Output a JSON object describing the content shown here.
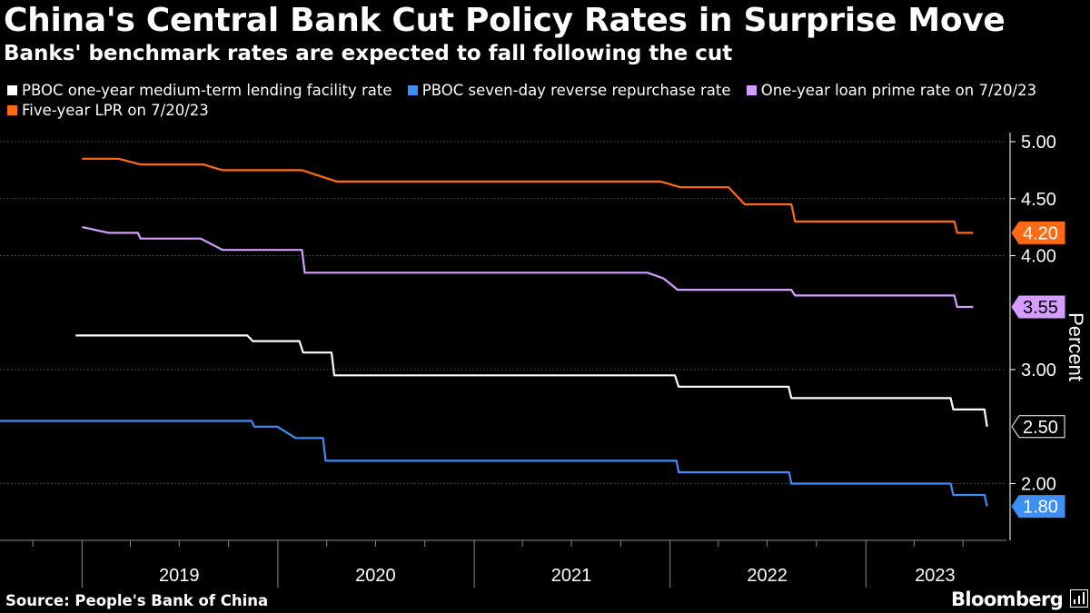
{
  "header": {
    "title": "China's Central Bank Cut Policy Rates in Surprise Move",
    "subtitle": "Banks' benchmark rates are expected to fall following the cut"
  },
  "footer": {
    "source": "Source: People's Bank of China",
    "brand": "Bloomberg"
  },
  "chart_data": {
    "type": "line",
    "ylabel": "Percent",
    "ylim": [
      1.5,
      5.1
    ],
    "yticks": [
      "5.00",
      "4.50",
      "4.00",
      "3.00",
      "2.00"
    ],
    "ytick_values": [
      5.0,
      4.5,
      4.0,
      3.0,
      2.0
    ],
    "xlim": [
      "2018-08-01",
      "2023-09-20"
    ],
    "year_labels": [
      {
        "label": "2019",
        "center": "2019-07-01"
      },
      {
        "label": "2020",
        "center": "2020-07-01"
      },
      {
        "label": "2021",
        "center": "2021-07-01"
      },
      {
        "label": "2022",
        "center": "2022-07-01"
      },
      {
        "label": "2023",
        "center": "2023-05-10"
      }
    ],
    "grid": true,
    "legend_position": "top",
    "series": [
      {
        "name": "PBOC one-year medium-term lending facility rate",
        "color": "#ffffff",
        "end_label": "2.50",
        "points": [
          [
            "2018-12-20",
            3.3
          ],
          [
            "2019-11-05",
            3.3
          ],
          [
            "2019-11-15",
            3.25
          ],
          [
            "2020-02-10",
            3.25
          ],
          [
            "2020-02-17",
            3.15
          ],
          [
            "2020-04-10",
            3.15
          ],
          [
            "2020-04-15",
            2.95
          ],
          [
            "2022-01-10",
            2.95
          ],
          [
            "2022-01-17",
            2.85
          ],
          [
            "2022-08-10",
            2.85
          ],
          [
            "2022-08-15",
            2.75
          ],
          [
            "2023-06-08",
            2.75
          ],
          [
            "2023-06-13",
            2.65
          ],
          [
            "2023-08-10",
            2.65
          ],
          [
            "2023-08-15",
            2.5
          ]
        ]
      },
      {
        "name": "PBOC seven-day reverse repurchase rate",
        "color": "#3d8ef5",
        "end_label": "1.80",
        "points": [
          [
            "2018-08-01",
            2.55
          ],
          [
            "2019-11-13",
            2.55
          ],
          [
            "2019-11-18",
            2.5
          ],
          [
            "2019-12-31",
            2.5
          ],
          [
            "2020-02-03",
            2.4
          ],
          [
            "2020-03-25",
            2.4
          ],
          [
            "2020-03-30",
            2.2
          ],
          [
            "2022-01-13",
            2.2
          ],
          [
            "2022-01-17",
            2.1
          ],
          [
            "2022-08-11",
            2.1
          ],
          [
            "2022-08-15",
            2.0
          ],
          [
            "2023-06-08",
            2.0
          ],
          [
            "2023-06-13",
            1.9
          ],
          [
            "2023-08-10",
            1.9
          ],
          [
            "2023-08-15",
            1.8
          ]
        ]
      },
      {
        "name": "One-year loan prime rate on 7/20/23",
        "color": "#d59dff",
        "end_label": "3.55",
        "points": [
          [
            "2019-01-01",
            4.25
          ],
          [
            "2019-02-20",
            4.2
          ],
          [
            "2019-04-15",
            4.2
          ],
          [
            "2019-04-20",
            4.15
          ],
          [
            "2019-08-10",
            4.15
          ],
          [
            "2019-09-20",
            4.05
          ],
          [
            "2020-02-15",
            4.05
          ],
          [
            "2020-02-20",
            3.85
          ],
          [
            "2021-11-20",
            3.85
          ],
          [
            "2021-12-20",
            3.8
          ],
          [
            "2022-01-15",
            3.7
          ],
          [
            "2022-08-15",
            3.7
          ],
          [
            "2022-08-22",
            3.65
          ],
          [
            "2023-06-15",
            3.65
          ],
          [
            "2023-06-20",
            3.55
          ],
          [
            "2023-07-20",
            3.55
          ]
        ]
      },
      {
        "name": "Five-year LPR on 7/20/23",
        "color": "#ff6a14",
        "end_label": "4.20",
        "points": [
          [
            "2019-01-01",
            4.85
          ],
          [
            "2019-03-10",
            4.85
          ],
          [
            "2019-04-20",
            4.8
          ],
          [
            "2019-08-15",
            4.8
          ],
          [
            "2019-09-20",
            4.75
          ],
          [
            "2020-02-15",
            4.75
          ],
          [
            "2020-04-20",
            4.65
          ],
          [
            "2021-12-15",
            4.65
          ],
          [
            "2022-01-20",
            4.6
          ],
          [
            "2022-04-20",
            4.6
          ],
          [
            "2022-05-20",
            4.45
          ],
          [
            "2022-08-15",
            4.45
          ],
          [
            "2022-08-22",
            4.3
          ],
          [
            "2023-06-15",
            4.3
          ],
          [
            "2023-06-20",
            4.2
          ],
          [
            "2023-07-20",
            4.2
          ]
        ]
      }
    ]
  }
}
